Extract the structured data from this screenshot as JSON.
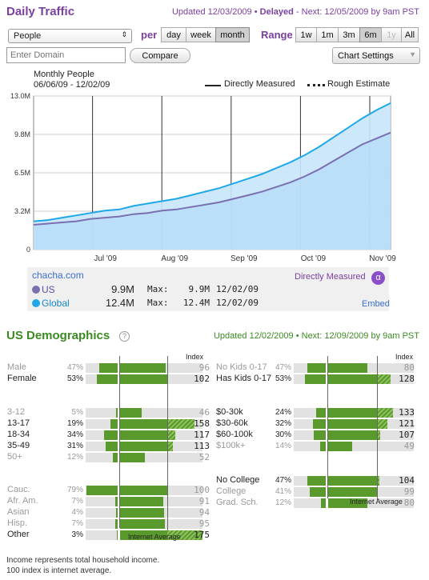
{
  "header": {
    "title": "Daily Traffic",
    "updated_prefix": "Updated 12/03/2009",
    "delayed": "Delayed",
    "next": "Next: 12/05/2009 by 9am PST"
  },
  "controls": {
    "metric_select": "People",
    "per_label": "per",
    "per_options": [
      "day",
      "week",
      "month"
    ],
    "per_selected": "month",
    "range_label": "Range",
    "range_options": [
      "1w",
      "1m",
      "3m",
      "6m",
      "1y",
      "All"
    ],
    "range_selected": "6m",
    "range_disabled": "1y",
    "domain_placeholder": "Enter Domain",
    "compare_label": "Compare",
    "chart_settings_label": "Chart Settings"
  },
  "chart_header": {
    "title": "Monthly People",
    "date_range": "06/06/09 - 12/02/09",
    "legend_solid": "Directly Measured",
    "legend_dotted": "Rough Estimate"
  },
  "chart_data": {
    "type": "area",
    "y_ticks": [
      "0",
      "3.2M",
      "6.5M",
      "9.8M",
      "13.0M"
    ],
    "ylim": [
      0,
      13.0
    ],
    "x_ticks": [
      "Jul '09",
      "Aug '09",
      "Sep '09",
      "Oct '09",
      "Nov '09"
    ],
    "series": [
      {
        "name": "Global",
        "color": "#1fa8e8",
        "values": [
          2.4,
          2.5,
          2.7,
          2.9,
          3.1,
          3.3,
          3.4,
          3.7,
          3.9,
          4.1,
          4.3,
          4.6,
          4.9,
          5.2,
          5.6,
          6.0,
          6.4,
          6.9,
          7.4,
          8.0,
          8.7,
          9.5,
          10.3,
          11.1,
          11.8,
          12.4
        ]
      },
      {
        "name": "US",
        "color": "#7a6fb0",
        "values": [
          2.1,
          2.2,
          2.3,
          2.4,
          2.6,
          2.7,
          2.8,
          3.0,
          3.1,
          3.3,
          3.4,
          3.6,
          3.8,
          4.0,
          4.3,
          4.6,
          4.9,
          5.3,
          5.7,
          6.2,
          6.8,
          7.5,
          8.2,
          8.9,
          9.4,
          9.9
        ]
      }
    ]
  },
  "summary": {
    "site": "chacha.com",
    "directly_measured": "Directly Measured",
    "rows": [
      {
        "name": "US",
        "value": "9.9M",
        "max_label": "Max:",
        "max": "9.9M",
        "date": "12/02/09"
      },
      {
        "name": "Global",
        "value": "12.4M",
        "max_label": "Max:",
        "max": "12.4M",
        "date": "12/02/09"
      }
    ],
    "embed": "Embed"
  },
  "demographics": {
    "title": "US Demographics",
    "updated": "Updated 12/02/2009",
    "next": "Next: 12/09/2009 by 9am PST",
    "index_label": "Index",
    "internet_average": "Internet Average",
    "left_groups": [
      {
        "rows": [
          {
            "label": "Male",
            "pct": "47%",
            "pct_value": 47,
            "index": 96,
            "dim": true
          },
          {
            "label": "Female",
            "pct": "53%",
            "pct_value": 53,
            "index": 102,
            "dim": false
          }
        ]
      },
      {
        "rows": [
          {
            "label": "3-12",
            "pct": "5%",
            "pct_value": 5,
            "index": 46,
            "dim": true
          },
          {
            "label": "13-17",
            "pct": "19%",
            "pct_value": 19,
            "index": 158,
            "dim": false
          },
          {
            "label": "18-34",
            "pct": "34%",
            "pct_value": 34,
            "index": 117,
            "dim": false
          },
          {
            "label": "35-49",
            "pct": "31%",
            "pct_value": 31,
            "index": 113,
            "dim": false
          },
          {
            "label": "50+",
            "pct": "12%",
            "pct_value": 12,
            "index": 52,
            "dim": true
          }
        ]
      },
      {
        "rows": [
          {
            "label": "Cauc.",
            "pct": "79%",
            "pct_value": 79,
            "index": 100,
            "dim": true
          },
          {
            "label": "Afr. Am.",
            "pct": "7%",
            "pct_value": 7,
            "index": 91,
            "dim": true
          },
          {
            "label": "Asian",
            "pct": "4%",
            "pct_value": 4,
            "index": 94,
            "dim": true
          },
          {
            "label": "Hisp.",
            "pct": "7%",
            "pct_value": 7,
            "index": 95,
            "dim": true
          },
          {
            "label": "Other",
            "pct": "3%",
            "pct_value": 3,
            "index": 175,
            "dim": false
          }
        ]
      }
    ],
    "right_groups": [
      {
        "rows": [
          {
            "label": "No Kids 0-17",
            "pct": "47%",
            "pct_value": 47,
            "index": 80,
            "dim": true
          },
          {
            "label": "Has Kids 0-17",
            "pct": "53%",
            "pct_value": 53,
            "index": 128,
            "dim": false
          }
        ]
      },
      {
        "rows": [
          {
            "label": "$0-30k",
            "pct": "24%",
            "pct_value": 24,
            "index": 133,
            "dim": false
          },
          {
            "label": "$30-60k",
            "pct": "32%",
            "pct_value": 32,
            "index": 121,
            "dim": false
          },
          {
            "label": "$60-100k",
            "pct": "30%",
            "pct_value": 30,
            "index": 107,
            "dim": false
          },
          {
            "label": "$100k+",
            "pct": "14%",
            "pct_value": 14,
            "index": 49,
            "dim": true
          }
        ]
      },
      {
        "rows": [
          {
            "label": "No College",
            "pct": "47%",
            "pct_value": 47,
            "index": 104,
            "dim": false
          },
          {
            "label": "College",
            "pct": "41%",
            "pct_value": 41,
            "index": 99,
            "dim": true
          },
          {
            "label": "Grad. Sch.",
            "pct": "12%",
            "pct_value": 12,
            "index": 80,
            "dim": true
          }
        ]
      }
    ]
  },
  "footnotes": [
    "Income represents total household income.",
    "100 index is internet average."
  ]
}
